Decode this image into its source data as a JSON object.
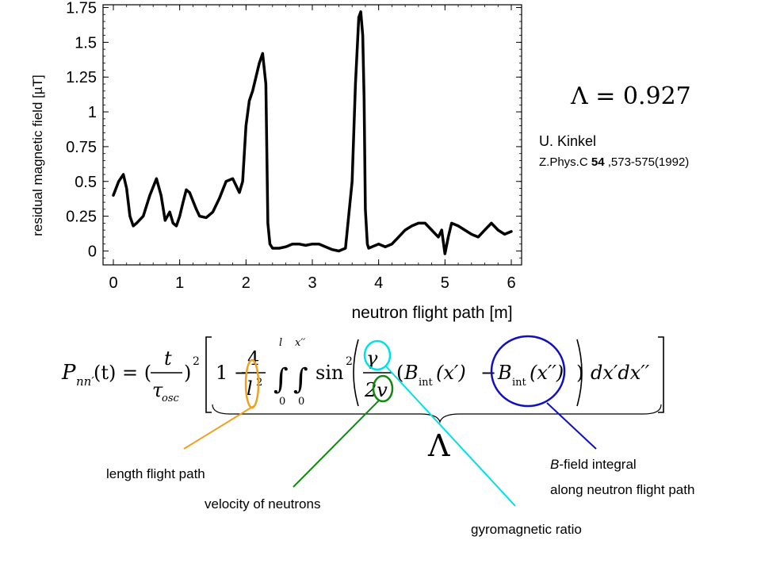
{
  "chart_data": {
    "type": "line",
    "xlabel": "neutron flight path [m]",
    "ylabel": "residual magnetic field [µT]",
    "xlim": [
      0,
      6
    ],
    "ylim": [
      -0.1,
      1.77
    ],
    "x_ticks": [
      "0",
      "1",
      "2",
      "3",
      "4",
      "5",
      "6"
    ],
    "y_ticks": [
      "0",
      "0.25",
      "0.5",
      "0.75",
      "1",
      "1.25",
      "1.5",
      "1.75"
    ],
    "grid": false,
    "series": [
      {
        "color": "#000000",
        "x": [
          0,
          0.08,
          0.15,
          0.2,
          0.25,
          0.3,
          0.35,
          0.45,
          0.55,
          0.65,
          0.72,
          0.78,
          0.85,
          0.9,
          0.95,
          1.0,
          1.05,
          1.1,
          1.15,
          1.25,
          1.3,
          1.4,
          1.5,
          1.6,
          1.7,
          1.8,
          1.9,
          1.95,
          2.0,
          2.05,
          2.1,
          2.15,
          2.2,
          2.25,
          2.3,
          2.33,
          2.36,
          2.4,
          2.5,
          2.6,
          2.7,
          2.8,
          2.9,
          3.0,
          3.1,
          3.2,
          3.3,
          3.4,
          3.5,
          3.6,
          3.65,
          3.7,
          3.73,
          3.76,
          3.78,
          3.8,
          3.83,
          3.85,
          3.9,
          4.0,
          4.1,
          4.2,
          4.3,
          4.4,
          4.5,
          4.6,
          4.7,
          4.8,
          4.9,
          4.95,
          5.0,
          5.05,
          5.1,
          5.2,
          5.3,
          5.4,
          5.5,
          5.6,
          5.7,
          5.8,
          5.9,
          6.0
        ],
        "y": [
          0.4,
          0.5,
          0.55,
          0.45,
          0.25,
          0.18,
          0.2,
          0.25,
          0.4,
          0.52,
          0.4,
          0.22,
          0.28,
          0.2,
          0.18,
          0.25,
          0.35,
          0.44,
          0.42,
          0.3,
          0.25,
          0.24,
          0.28,
          0.38,
          0.5,
          0.52,
          0.42,
          0.5,
          0.9,
          1.08,
          1.15,
          1.25,
          1.35,
          1.42,
          1.2,
          0.2,
          0.05,
          0.02,
          0.02,
          0.03,
          0.05,
          0.05,
          0.04,
          0.05,
          0.05,
          0.03,
          0.01,
          0.0,
          0.02,
          0.5,
          1.2,
          1.68,
          1.72,
          1.55,
          1.1,
          0.3,
          0.05,
          0.02,
          0.03,
          0.05,
          0.03,
          0.05,
          0.1,
          0.15,
          0.18,
          0.2,
          0.2,
          0.15,
          0.1,
          0.15,
          -0.02,
          0.1,
          0.2,
          0.18,
          0.15,
          0.12,
          0.1,
          0.15,
          0.2,
          0.15,
          0.12,
          0.14
        ]
      }
    ]
  },
  "lambda_value": "Λ = 0.927",
  "reference": {
    "author": "U. Kinkel",
    "journal_prefix": "Z.Phys.C ",
    "volume": "54",
    "pages": " ,573-575(1992)"
  },
  "equation": {
    "lhs_P": "P",
    "lhs_sub": "nn′",
    "lhs_rest": "(t) = (",
    "frac_t_num": "t",
    "frac_t_den": "τ",
    "tau_sub": "osc",
    "squared": "2",
    "one_minus": "1 −",
    "four": "4",
    "l": "l",
    "int_upper_1": "l",
    "int_upper_2": "x′′",
    "int_lower": "0",
    "sin": "sin",
    "gamma": "γ",
    "two_v": "2v",
    "B": "B",
    "B_sub": "int",
    "x_prime": "(x′)",
    "x_double_prime": "(x′′)",
    "differentials": "dx′dx′′",
    "lambda_symbol": "Λ"
  },
  "annotations": {
    "length": "length flight path",
    "velocity": "velocity of neutrons",
    "gyro": "gyromagnetic ratio",
    "bfield_italic": "B",
    "bfield_rest": "-field integral",
    "bfield_line2": "along neutron flight path"
  },
  "colors": {
    "length": "#f0a020",
    "velocity": "#118811",
    "gyro": "#00e0e8",
    "bfield": "#1010c0"
  }
}
